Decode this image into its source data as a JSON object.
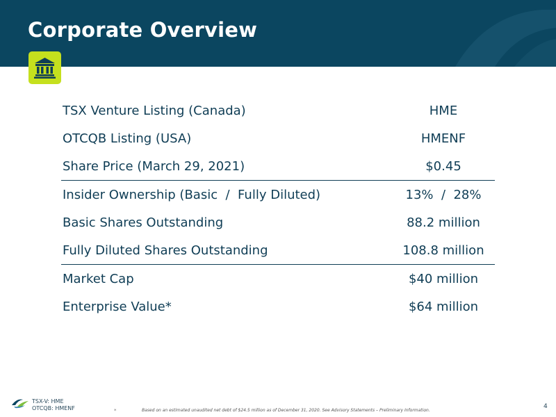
{
  "slide": {
    "title": "Corporate Overview",
    "page_number": "4"
  },
  "icon": {
    "name": "bank-building-icon",
    "bg_color": "#c5e01e"
  },
  "colors": {
    "header_bg": "#0b4660",
    "accent": "#c5e01e",
    "text": "#0f3d55"
  },
  "groups": [
    {
      "rows": [
        {
          "label": "TSX Venture Listing (Canada)",
          "value": "HME"
        },
        {
          "label": "OTCQB Listing (USA)",
          "value": "HMENF"
        },
        {
          "label": "Share Price (March 29, 2021)",
          "value": "$0.45"
        }
      ]
    },
    {
      "rows": [
        {
          "label": "Insider Ownership (Basic  /  Fully Diluted)",
          "value": "13%  /  28%"
        },
        {
          "label": "Basic Shares Outstanding",
          "value": "88.2 million"
        },
        {
          "label": "Fully Diluted Shares Outstanding",
          "value": "108.8 million"
        }
      ]
    },
    {
      "rows": [
        {
          "label": "Market Cap",
          "value": "$40 million"
        },
        {
          "label": "Enterprise Value*",
          "value": "$64 million"
        }
      ]
    }
  ],
  "footer": {
    "ticker_tsx": "TSX-V: HME",
    "ticker_otc": "OTCQB: HMENF",
    "footnote_mark": "*",
    "footnote": "Based on an estimated unaudited net debt of $24.5 million as of December 31, 2020. See Advisory Statements – Preliminary Information."
  }
}
